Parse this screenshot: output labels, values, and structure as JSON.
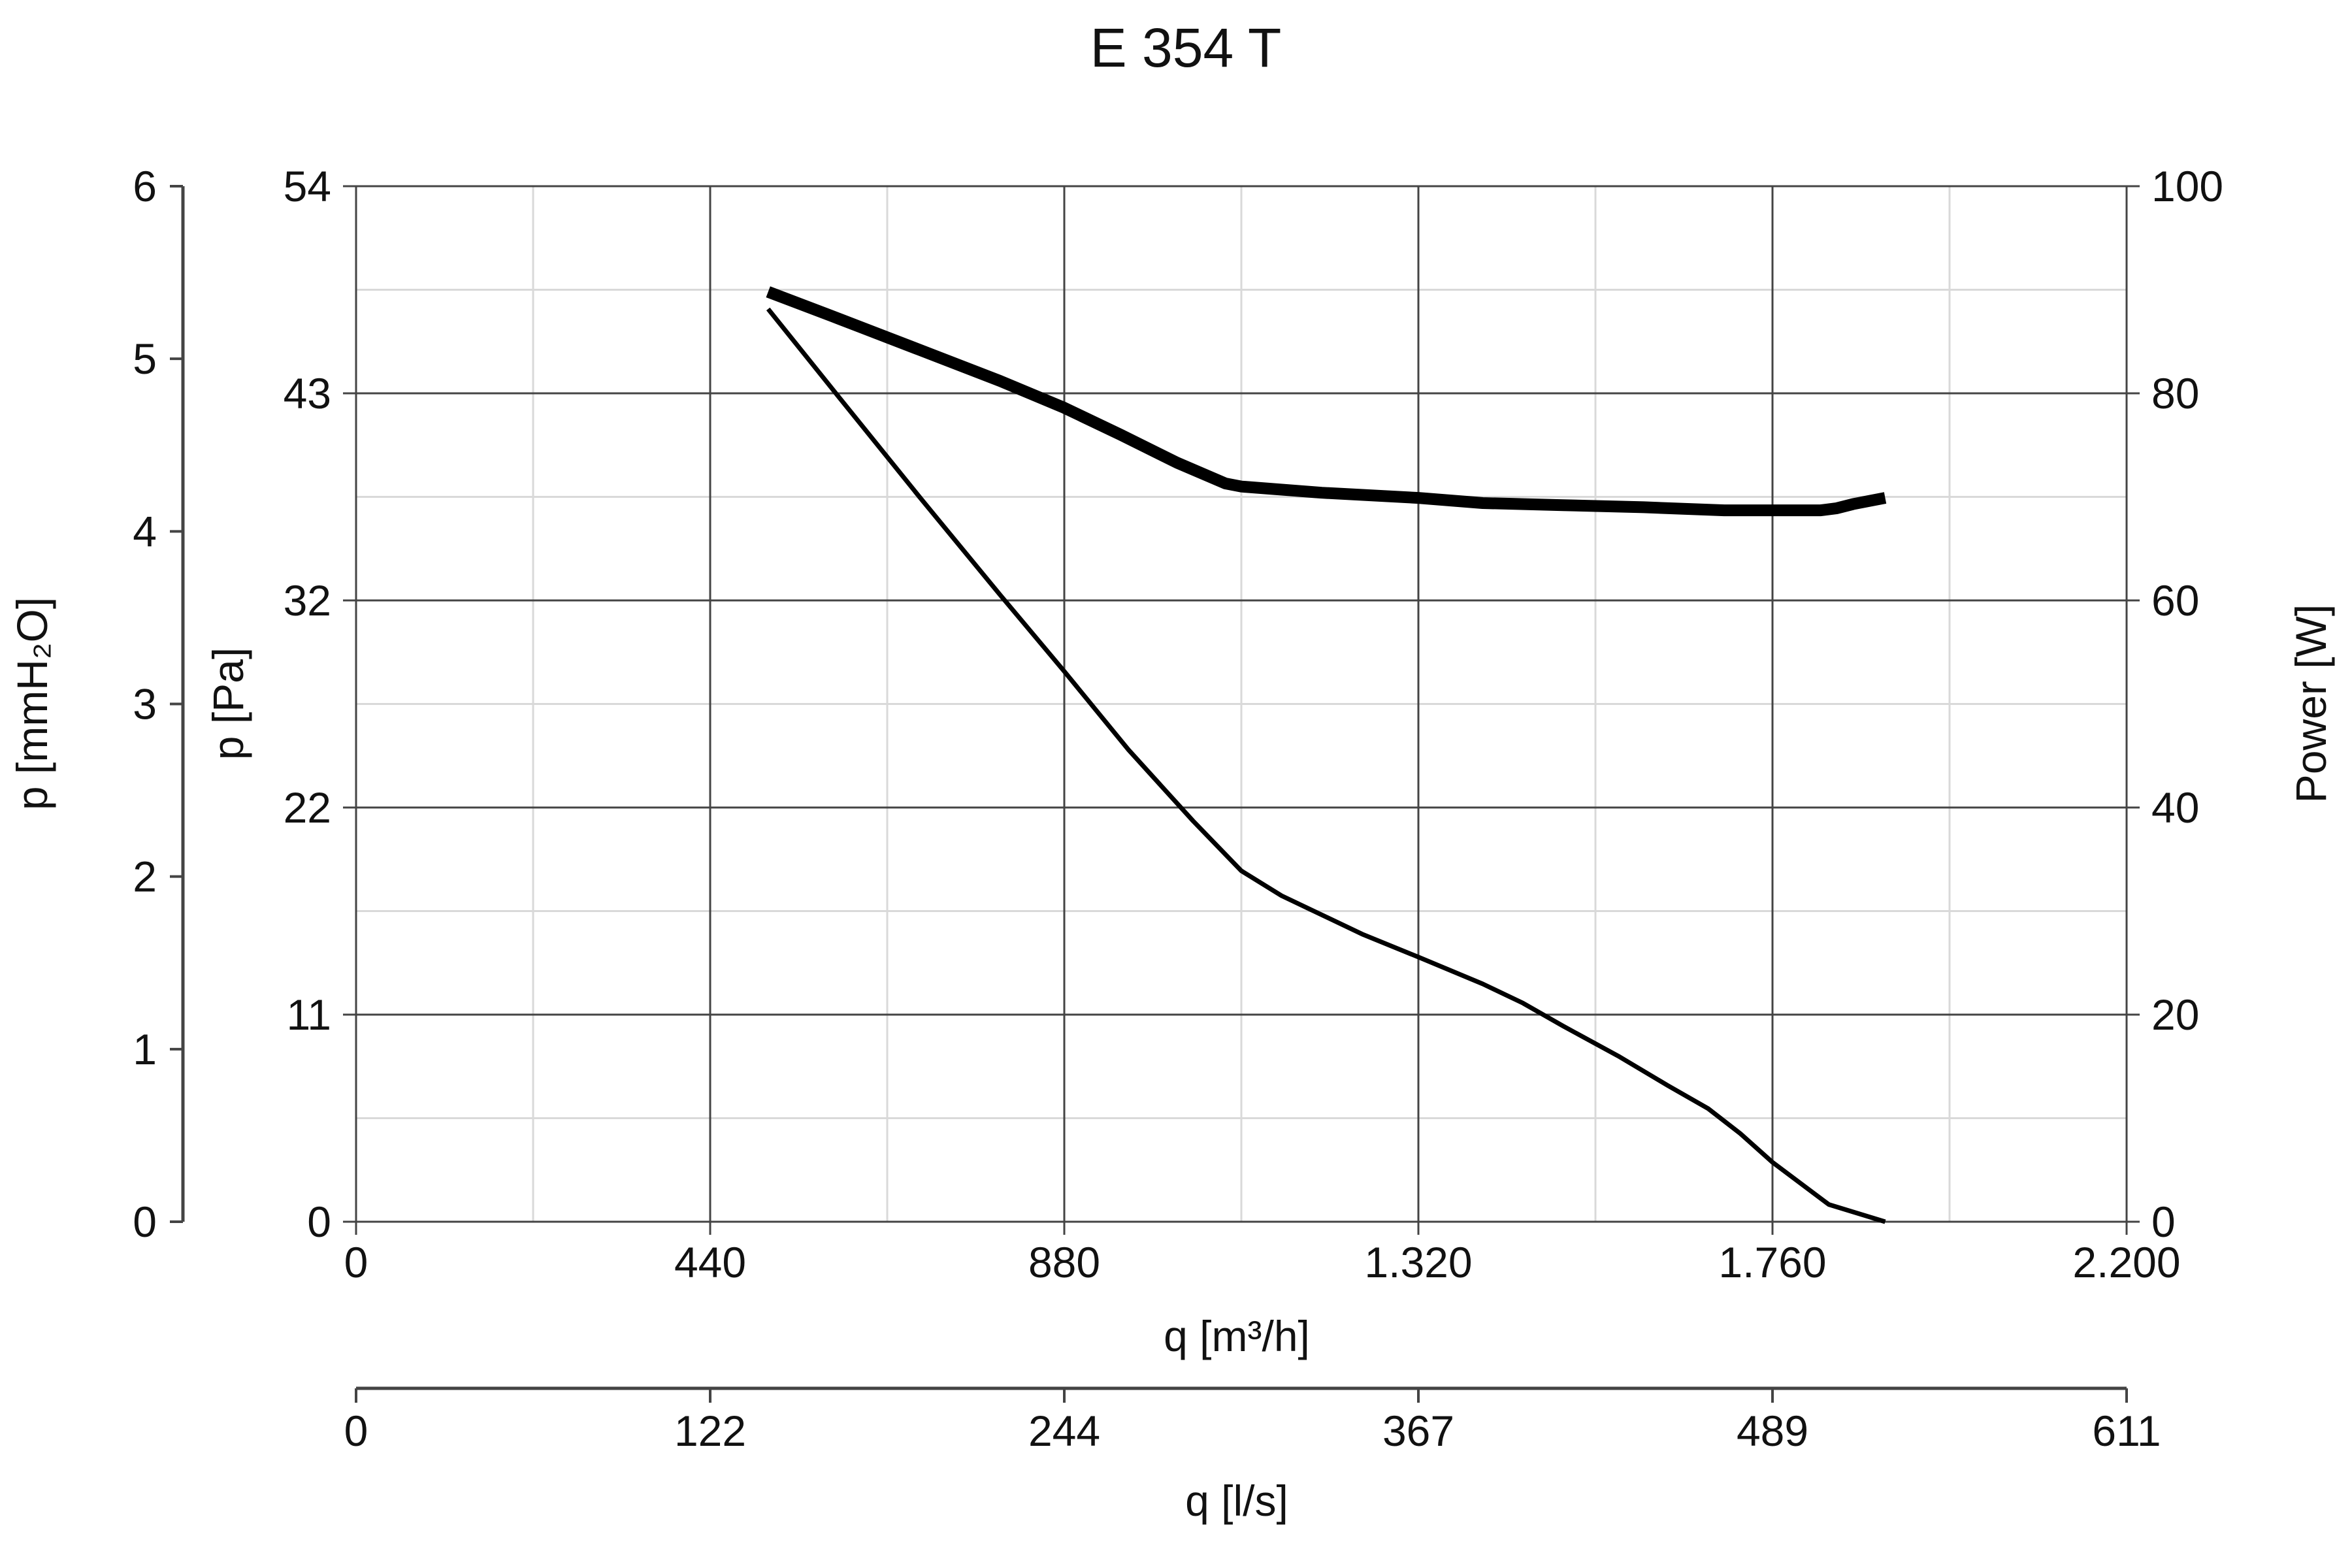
{
  "chart_data": {
    "type": "line",
    "title": "E 354 T",
    "xlabel": "q [m³/h]",
    "xlabel_secondary": "q [l/s]",
    "ylabel_left_outer": "p [mmH₂O]",
    "ylabel_left": "p [Pa]",
    "ylabel_right": "Power [W]",
    "xlim": [
      0,
      2200
    ],
    "ylim": [
      0,
      54
    ],
    "ylim_right": [
      0,
      100
    ],
    "ylim_outer": [
      0,
      6
    ],
    "grid": true,
    "x_ticks": [
      0,
      440,
      880,
      1320,
      1760,
      2200
    ],
    "x_tick_labels": [
      "0",
      "440",
      "880",
      "1.320",
      "1.760",
      "2.200"
    ],
    "x2_tick_labels": [
      "0",
      "122",
      "244",
      "367",
      "489",
      "611"
    ],
    "y_ticks": [
      0,
      10.8,
      21.6,
      32.4,
      43.2,
      54
    ],
    "y_tick_labels": [
      "0",
      "11",
      "22",
      "32",
      "43",
      "54"
    ],
    "y_right_ticks": [
      0,
      20,
      40,
      60,
      80,
      100
    ],
    "y_right_tick_labels": [
      "0",
      "20",
      "40",
      "60",
      "80",
      "100"
    ],
    "y_outer_ticks": [
      0,
      1,
      2,
      3,
      4,
      5,
      6
    ],
    "y_outer_tick_labels": [
      "0",
      "1",
      "2",
      "3",
      "4",
      "5",
      "6"
    ],
    "series": [
      {
        "axis": "left",
        "x": [
          512,
          600,
          700,
          800,
          880,
          960,
          1040,
          1100,
          1150,
          1250,
          1320,
          1400,
          1450,
          1500,
          1570,
          1630,
          1680,
          1720,
          1760,
          1830,
          1900
        ],
        "values": [
          47.6,
          43.0,
          37.8,
          32.7,
          28.7,
          24.6,
          20.9,
          18.3,
          17.0,
          15.0,
          13.8,
          12.4,
          11.4,
          10.2,
          8.6,
          7.1,
          5.9,
          4.6,
          3.1,
          0.9,
          0
        ]
      },
      {
        "axis": "right",
        "line_width": "thick",
        "x": [
          512,
          600,
          700,
          800,
          880,
          950,
          1020,
          1080,
          1100,
          1200,
          1320,
          1400,
          1500,
          1600,
          1700,
          1760,
          1820,
          1840,
          1860,
          1900
        ],
        "values": [
          89.8,
          87.2,
          84.2,
          81.2,
          78.6,
          76.0,
          73.3,
          71.3,
          71.0,
          70.4,
          69.9,
          69.4,
          69.2,
          69.0,
          68.7,
          68.7,
          68.7,
          68.9,
          69.3,
          69.9
        ]
      }
    ]
  }
}
